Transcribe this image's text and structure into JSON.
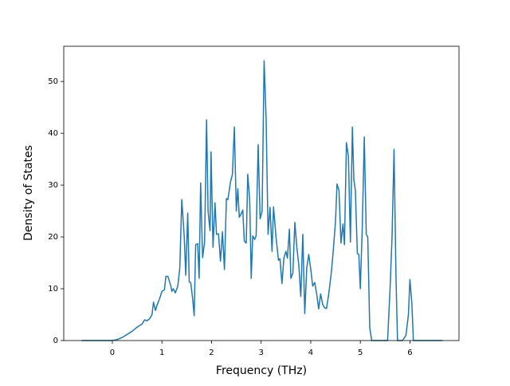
{
  "chart_data": {
    "type": "line",
    "xlabel": "Frequency (THz)",
    "ylabel": "Density of States",
    "x": [
      -0.62,
      0,
      0.1,
      0.2,
      0.3,
      0.4,
      0.5,
      0.6,
      0.65,
      0.7,
      0.75,
      0.8,
      0.83,
      0.87,
      0.9,
      0.95,
      1.0,
      1.05,
      1.08,
      1.12,
      1.18,
      1.2,
      1.23,
      1.27,
      1.32,
      1.36,
      1.4,
      1.45,
      1.48,
      1.52,
      1.55,
      1.58,
      1.62,
      1.65,
      1.68,
      1.72,
      1.75,
      1.78,
      1.82,
      1.86,
      1.9,
      1.93,
      1.97,
      1.99,
      2.03,
      2.07,
      2.1,
      2.14,
      2.18,
      2.22,
      2.26,
      2.3,
      2.33,
      2.38,
      2.42,
      2.46,
      2.5,
      2.53,
      2.56,
      2.6,
      2.63,
      2.66,
      2.7,
      2.73,
      2.77,
      2.8,
      2.83,
      2.87,
      2.9,
      2.94,
      2.98,
      3.02,
      3.06,
      3.1,
      3.14,
      3.18,
      3.22,
      3.25,
      3.3,
      3.35,
      3.38,
      3.42,
      3.46,
      3.5,
      3.53,
      3.57,
      3.6,
      3.64,
      3.68,
      3.72,
      3.76,
      3.8,
      3.84,
      3.88,
      3.92,
      3.96,
      4.0,
      4.04,
      4.08,
      4.12,
      4.16,
      4.2,
      4.24,
      4.28,
      4.32,
      4.37,
      4.42,
      4.46,
      4.5,
      4.53,
      4.57,
      4.61,
      4.65,
      4.68,
      4.72,
      4.76,
      4.8,
      4.84,
      4.87,
      4.9,
      4.94,
      4.97,
      5.0,
      5.04,
      5.08,
      5.12,
      5.15,
      5.19,
      5.23,
      5.5,
      5.55,
      5.6,
      5.64,
      5.68,
      5.72,
      5.75,
      5.85,
      5.92,
      5.97,
      6.0,
      6.04,
      6.07,
      6.66
    ],
    "series": [
      {
        "color": "#1f77b4",
        "values": [
          0,
          0,
          0.2,
          0.6,
          1.2,
          1.8,
          2.6,
          3.2,
          4,
          3.8,
          4.2,
          5,
          7.4,
          5.8,
          6.8,
          8,
          9.5,
          9.8,
          12.4,
          12.4,
          10.5,
          9.5,
          10,
          9.2,
          10.5,
          14,
          27.2,
          20,
          12.6,
          24.6,
          11.3,
          11.2,
          8,
          4.8,
          18.5,
          18.7,
          12,
          30.4,
          16,
          19,
          42.6,
          25,
          21.2,
          36.4,
          18,
          26.6,
          20.5,
          20.6,
          15.3,
          21,
          13.7,
          27.4,
          27.2,
          30.5,
          32,
          41.2,
          25,
          29.3,
          23.8,
          24.5,
          25.2,
          19.2,
          18.8,
          32.1,
          27,
          12,
          20.2,
          19.5,
          20.3,
          37.8,
          23.5,
          25,
          54,
          43,
          20.5,
          25.7,
          17.2,
          25.8,
          20,
          15.5,
          15.8,
          11,
          16,
          17.2,
          15.9,
          21.5,
          12,
          13,
          22.8,
          18,
          14.5,
          8.5,
          20.5,
          5.2,
          14,
          16.6,
          13.8,
          10.5,
          11.2,
          9,
          6.1,
          9,
          7,
          6.3,
          6.2,
          9.5,
          13.5,
          18,
          23,
          30.2,
          29,
          18.8,
          22.5,
          18.5,
          38.2,
          35.5,
          19,
          41.2,
          31,
          29,
          16.8,
          16.6,
          10,
          22,
          39.3,
          20.5,
          20,
          2.5,
          0,
          0,
          0,
          10,
          20,
          36.9,
          12,
          0,
          0,
          1,
          5,
          11.8,
          7,
          0,
          0
        ]
      }
    ],
    "xlim": [
      -0.98,
      6.99
    ],
    "ylim": [
      0,
      56.8
    ],
    "xticks": [
      0,
      1,
      2,
      3,
      4,
      5,
      6
    ],
    "yticks": [
      0,
      10,
      20,
      30,
      40,
      50
    ]
  }
}
